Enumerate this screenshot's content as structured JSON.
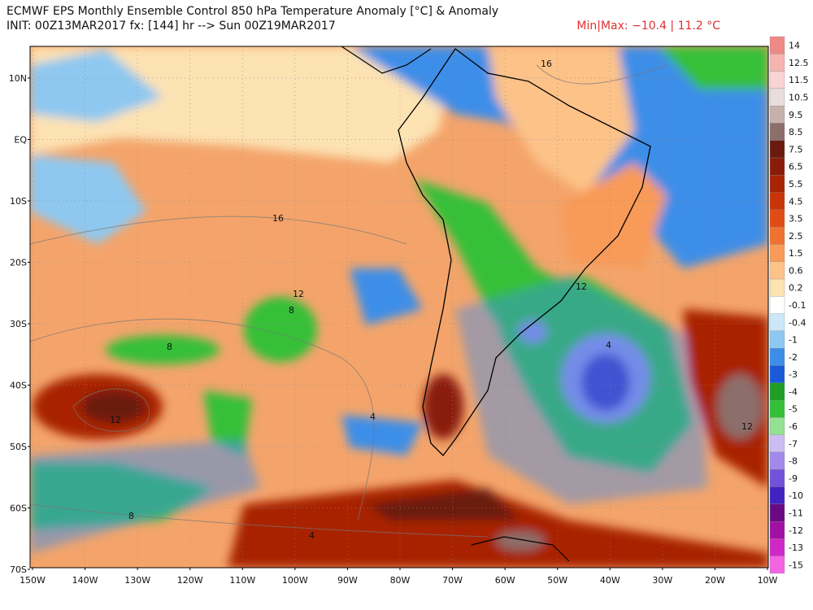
{
  "header": {
    "title": "ECMWF EPS Monthly Ensemble Control 850 hPa Temperature Anomaly [°C] & Anomaly",
    "init": "INIT: 00Z13MAR2017 fx: [144] hr --> Sun 00Z19MAR2017",
    "minmax": "Min|Max: −10.4 | 11.2 °C"
  },
  "map": {
    "lat_labels": [
      "10N",
      "EQ",
      "10S",
      "20S",
      "30S",
      "40S",
      "50S",
      "60S",
      "70S"
    ],
    "lon_labels": [
      "150W",
      "140W",
      "130W",
      "120W",
      "110W",
      "100W",
      "90W",
      "80W",
      "70W",
      "60W",
      "50W",
      "40W",
      "30W",
      "20W",
      "10W"
    ],
    "contour_labels": [
      "16",
      "16",
      "12",
      "8",
      "12",
      "8",
      "4",
      "12",
      "8",
      "4",
      "12",
      "4"
    ]
  },
  "colorbar": {
    "labels": [
      "14",
      "12.5",
      "11.5",
      "10.5",
      "9.5",
      "8.5",
      "7.5",
      "6.5",
      "5.5",
      "4.5",
      "3.5",
      "2.5",
      "1.5",
      "0.6",
      "0.2",
      "-0.1",
      "-0.4",
      "-1",
      "-2",
      "-3",
      "-4",
      "-5",
      "-6",
      "-7",
      "-8",
      "-9",
      "-10",
      "-11",
      "-12",
      "-13",
      "-15"
    ],
    "colors": [
      "#ee8a86",
      "#f6b4b0",
      "#f8d4d2",
      "#e8dcdc",
      "#c8b0ac",
      "#8c6e6a",
      "#6a1a0e",
      "#8a1c0a",
      "#a82404",
      "#c83408",
      "#e04c14",
      "#f07230",
      "#f89a58",
      "#fcc288",
      "#fde2b2",
      "#ffffff",
      "#cce8f8",
      "#8ec8f0",
      "#3e8ee8",
      "#1a5ad8",
      "#1e9e24",
      "#34c038",
      "#94e094",
      "#ccbcf2",
      "#a28aea",
      "#7252d8",
      "#4222c0",
      "#6a0a82",
      "#a010a2",
      "#d028c8",
      "#f264e2"
    ]
  }
}
